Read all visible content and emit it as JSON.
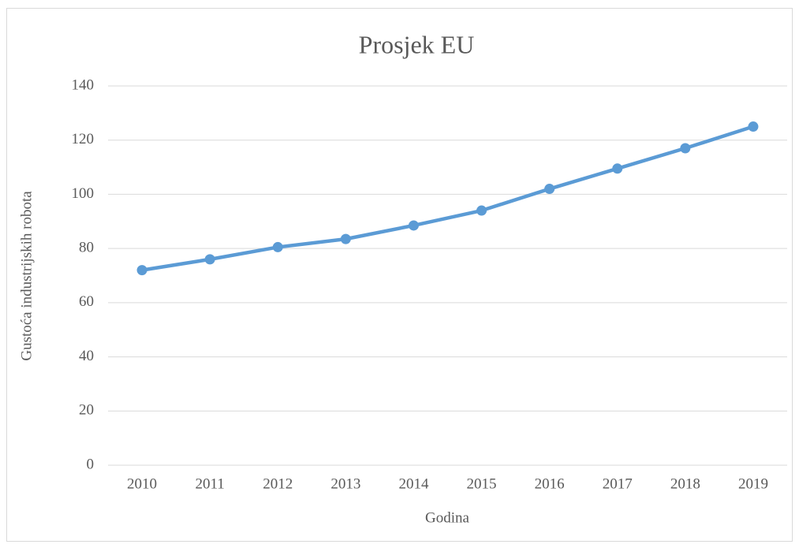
{
  "chart_data": {
    "type": "line",
    "title": "Prosjek EU",
    "x_label": "Godina",
    "y_label": "Gustoća industrijskih robota",
    "categories": [
      "2010",
      "2011",
      "2012",
      "2013",
      "2014",
      "2015",
      "2016",
      "2017",
      "2018",
      "2019"
    ],
    "series": [
      {
        "name": "Prosjek EU",
        "color": "#5b9bd5",
        "values": [
          72,
          76,
          80.5,
          83.5,
          88.5,
          94,
          102,
          109.5,
          117,
          125
        ]
      }
    ],
    "ylim": [
      0,
      140
    ],
    "yticks": [
      0,
      20,
      40,
      60,
      80,
      100,
      120,
      140
    ],
    "grid": true
  }
}
